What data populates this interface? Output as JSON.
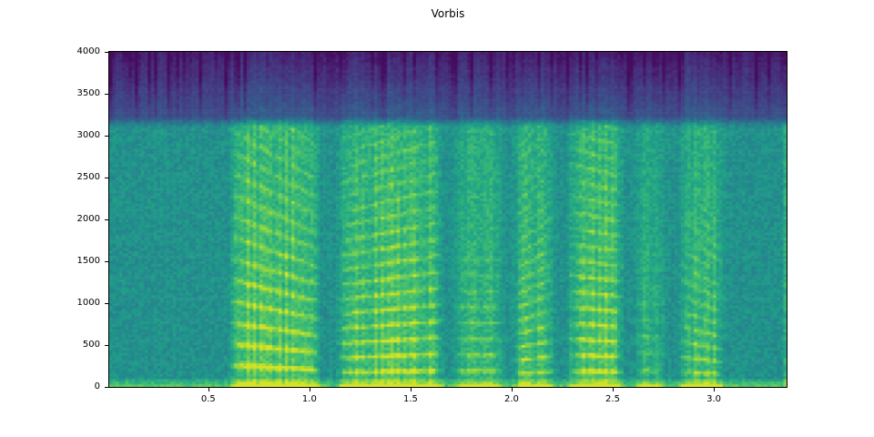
{
  "figure": {
    "background": "#ffffff",
    "spine_color": "#000000",
    "text_color": "#000000"
  },
  "chart_data": {
    "type": "heatmap",
    "subtype": "spectrogram",
    "title": "Vorbis",
    "xlabel": "",
    "ylabel": "",
    "xlim": [
      0.01,
      3.36
    ],
    "ylim": [
      0,
      4000
    ],
    "grid": false,
    "legend": false,
    "xticks": [
      {
        "v": 0.5,
        "label": "0.5"
      },
      {
        "v": 1.0,
        "label": "1.0"
      },
      {
        "v": 1.5,
        "label": "1.5"
      },
      {
        "v": 2.0,
        "label": "2.0"
      },
      {
        "v": 2.5,
        "label": "2.5"
      },
      {
        "v": 3.0,
        "label": "3.0"
      }
    ],
    "yticks": [
      {
        "v": 0,
        "label": "0"
      },
      {
        "v": 500,
        "label": "500"
      },
      {
        "v": 1000,
        "label": "1000"
      },
      {
        "v": 1500,
        "label": "1500"
      },
      {
        "v": 2000,
        "label": "2000"
      },
      {
        "v": 2500,
        "label": "2500"
      },
      {
        "v": 3000,
        "label": "3000"
      },
      {
        "v": 3500,
        "label": "3500"
      },
      {
        "v": 4000,
        "label": "4000"
      }
    ],
    "colormap": "viridis",
    "colormap_anchors": [
      "#440154",
      "#482475",
      "#414487",
      "#355f8d",
      "#2a788e",
      "#21918c",
      "#22a884",
      "#44bf70",
      "#7ad151",
      "#bddf26",
      "#fde725"
    ],
    "lowpass_cutoff_hz": 3170,
    "bottom_energy_band_hz": 90,
    "background_level_below_cutoff": 0.5,
    "background_level_above_cutoff": 0.22,
    "segments": [
      {
        "t0": 0.6,
        "t1": 1.06,
        "strength": 1.0,
        "f0": 230,
        "f0_slope": -120,
        "fmax": 2800
      },
      {
        "t0": 1.13,
        "t1": 1.67,
        "strength": 0.9,
        "f0": 185,
        "f0_slope": 45,
        "fmax": 3170
      },
      {
        "t0": 1.7,
        "t1": 1.97,
        "strength": 0.62,
        "f0": 190,
        "f0_slope": 0,
        "fmax": 1500
      },
      {
        "t0": 2.0,
        "t1": 2.22,
        "strength": 0.8,
        "f0": 170,
        "f0_slope": 150,
        "fmax": 2500
      },
      {
        "t0": 2.27,
        "t1": 2.56,
        "strength": 0.95,
        "f0": 185,
        "f0_slope": -40,
        "fmax": 3170
      },
      {
        "t0": 2.6,
        "t1": 2.77,
        "strength": 0.55,
        "f0": 200,
        "f0_slope": 0,
        "fmax": 1300
      },
      {
        "t0": 2.82,
        "t1": 3.06,
        "strength": 0.75,
        "f0": 165,
        "f0_slope": -160,
        "fmax": 1700
      }
    ]
  }
}
